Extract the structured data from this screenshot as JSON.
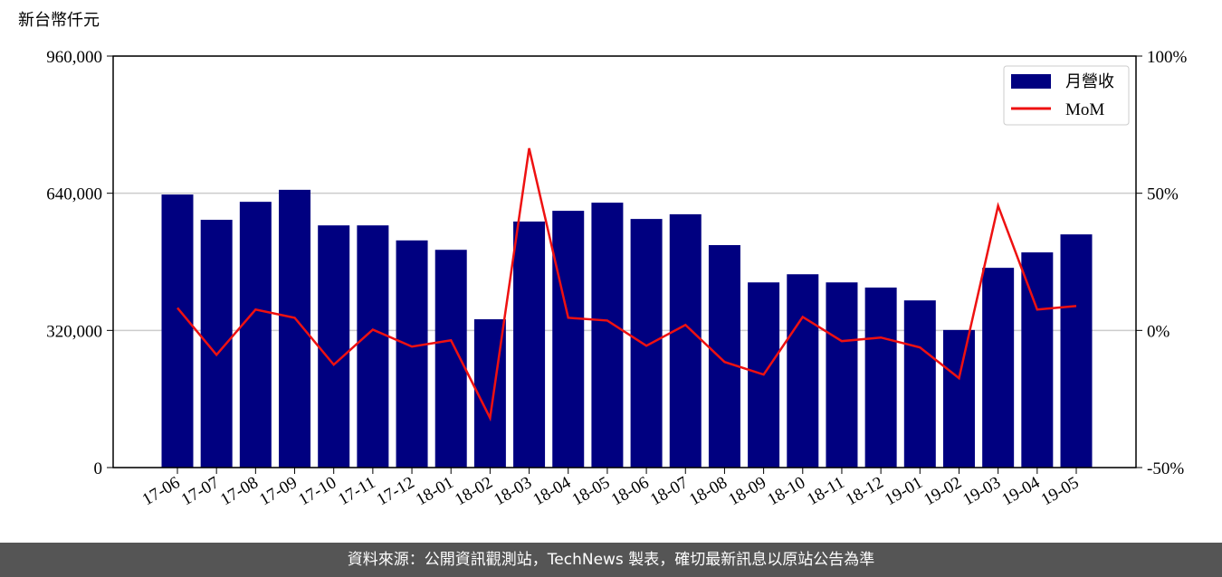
{
  "chart_data": {
    "type": "bar_line",
    "y_label": "新台幣仟元",
    "categories": [
      "17-06",
      "17-07",
      "17-08",
      "17-09",
      "17-10",
      "17-11",
      "17-12",
      "18-01",
      "18-02",
      "18-03",
      "18-04",
      "18-05",
      "18-06",
      "18-07",
      "18-08",
      "18-09",
      "18-10",
      "18-11",
      "18-12",
      "19-01",
      "19-02",
      "19-03",
      "19-04",
      "19-05"
    ],
    "series": [
      {
        "name": "月營收",
        "color": "#000080",
        "values": [
          637000,
          578000,
          620000,
          648000,
          565000,
          565000,
          530000,
          508000,
          346000,
          574000,
          599000,
          618000,
          580000,
          591000,
          519000,
          432000,
          451000,
          432000,
          420000,
          390000,
          321000,
          466000,
          502000,
          544000
        ]
      },
      {
        "name": "MoM",
        "color": "#ee1111",
        "axis": "y2",
        "values": [
          8.2,
          -8.9,
          7.6,
          4.6,
          -12.5,
          0.3,
          -5.9,
          -3.6,
          -31.9,
          66.4,
          4.6,
          3.6,
          -5.6,
          2.0,
          -11.5,
          -16.1,
          4.9,
          -3.9,
          -2.6,
          -6.2,
          -17.4,
          45.4,
          7.6,
          8.9
        ]
      }
    ],
    "ylim": [
      0,
      960000
    ],
    "yticks": [
      0,
      {
        "value": 320000,
        "label": "320,000"
      },
      {
        "value": 640000,
        "label": "640,000"
      },
      {
        "value": 960000,
        "label": "960,000"
      }
    ],
    "y2lim": [
      -50,
      100
    ],
    "y2ticks": [
      {
        "value": -50,
        "label": "-50%"
      },
      {
        "value": 0,
        "label": "0%"
      },
      {
        "value": 50,
        "label": "50%"
      },
      {
        "value": 100,
        "label": "100%"
      }
    ],
    "grid": true,
    "legend": "upper right",
    "footer": "資料來源：公開資訊觀測站，TechNews 製表，確切最新訊息以原站公告為準"
  }
}
